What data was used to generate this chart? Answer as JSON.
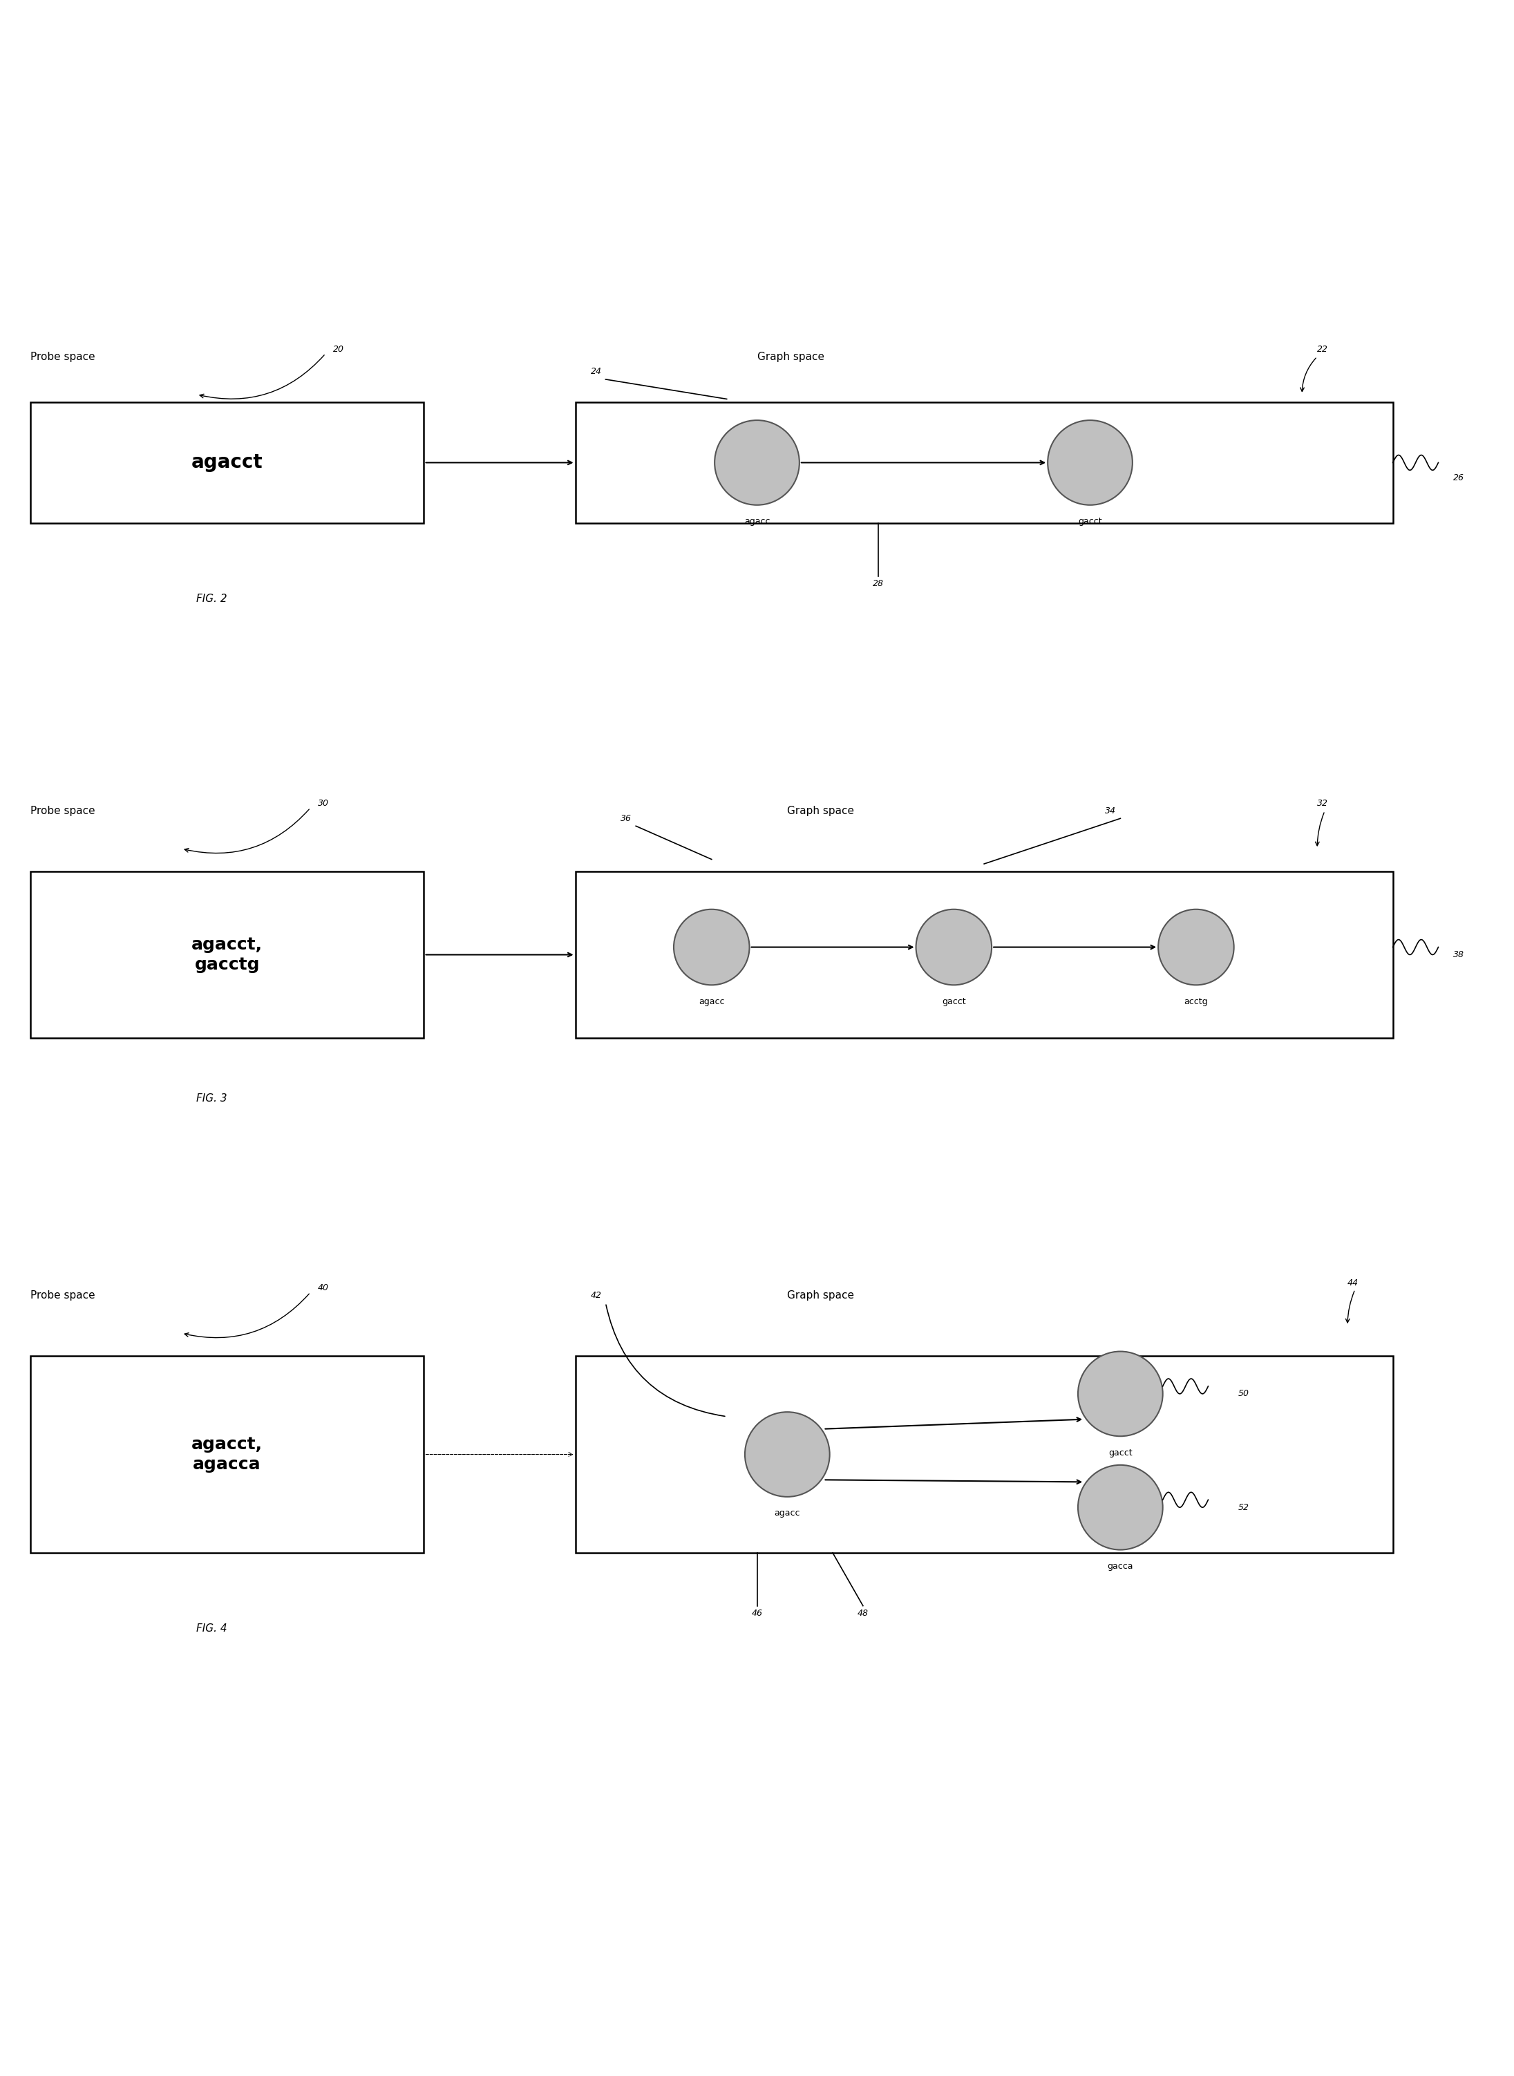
{
  "bg_color": "#ffffff",
  "fig_width": 21.91,
  "fig_height": 30.04,
  "fig2": {
    "label": "FIG. 2",
    "probe_space_label": "Probe space",
    "probe_space_ref": "20",
    "probe_box_text": "agacct",
    "graph_space_label": "Graph space",
    "graph_space_ref": "22",
    "node1_label": "agacc",
    "node2_label": "gacct",
    "ref_24": "24",
    "ref_26": "26",
    "ref_28": "28"
  },
  "fig3": {
    "label": "FIG. 3",
    "probe_space_label": "Probe space",
    "probe_space_ref": "30",
    "probe_box_text": "agacct,\ngacctg",
    "graph_space_label": "Graph space",
    "graph_space_ref": "32",
    "node1_label": "agacc",
    "node2_label": "gacct",
    "node3_label": "acctg",
    "ref_34": "34",
    "ref_36": "36",
    "ref_38": "38"
  },
  "fig4": {
    "label": "FIG. 4",
    "probe_space_label": "Probe space",
    "probe_space_ref": "40",
    "probe_box_text": "agacct,\nagacca",
    "graph_space_label": "Graph space",
    "graph_space_ref": "44",
    "node1_label": "agacc",
    "node2_label": "gacct",
    "node3_label": "gacca",
    "ref_42": "42",
    "ref_46": "46",
    "ref_48": "48",
    "ref_50": "50",
    "ref_52": "52"
  },
  "node_fill_color": "#c0c0c0",
  "node_edge_color": "#555555",
  "box_edge_color": "#000000",
  "line_color": "#000000",
  "text_color": "#000000"
}
